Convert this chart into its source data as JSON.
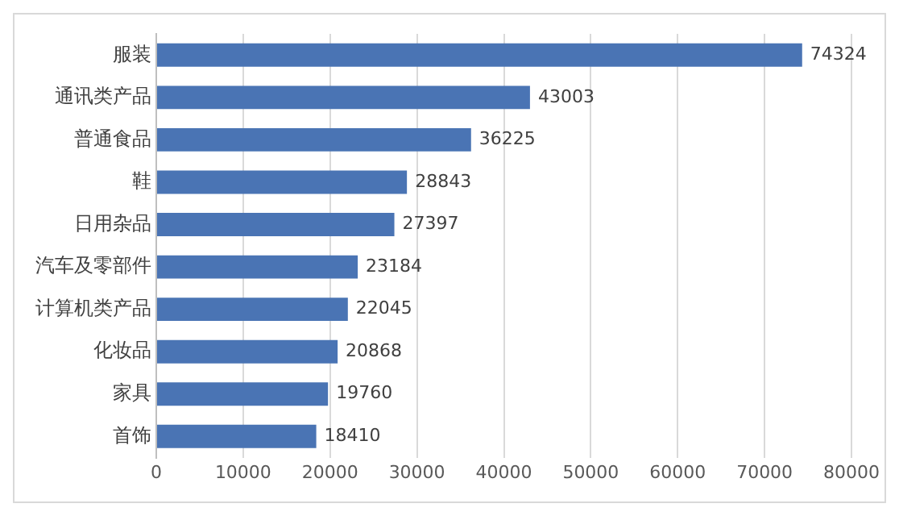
{
  "chart_data": {
    "type": "bar",
    "orientation": "horizontal",
    "categories": [
      "服装",
      "通讯类产品",
      "普通食品",
      "鞋",
      "日用杂品",
      "汽车及零部件",
      "计算机类产品",
      "化妆品",
      "家具",
      "首饰"
    ],
    "values": [
      74324,
      43003,
      36225,
      28843,
      27397,
      23184,
      22045,
      20868,
      19760,
      18410
    ],
    "color": "#4a74b4",
    "xlim": [
      0,
      80000
    ],
    "xticks": [
      0,
      10000,
      20000,
      30000,
      40000,
      50000,
      60000,
      70000,
      80000
    ],
    "grid": "x",
    "data_labels": true,
    "legend": false
  }
}
